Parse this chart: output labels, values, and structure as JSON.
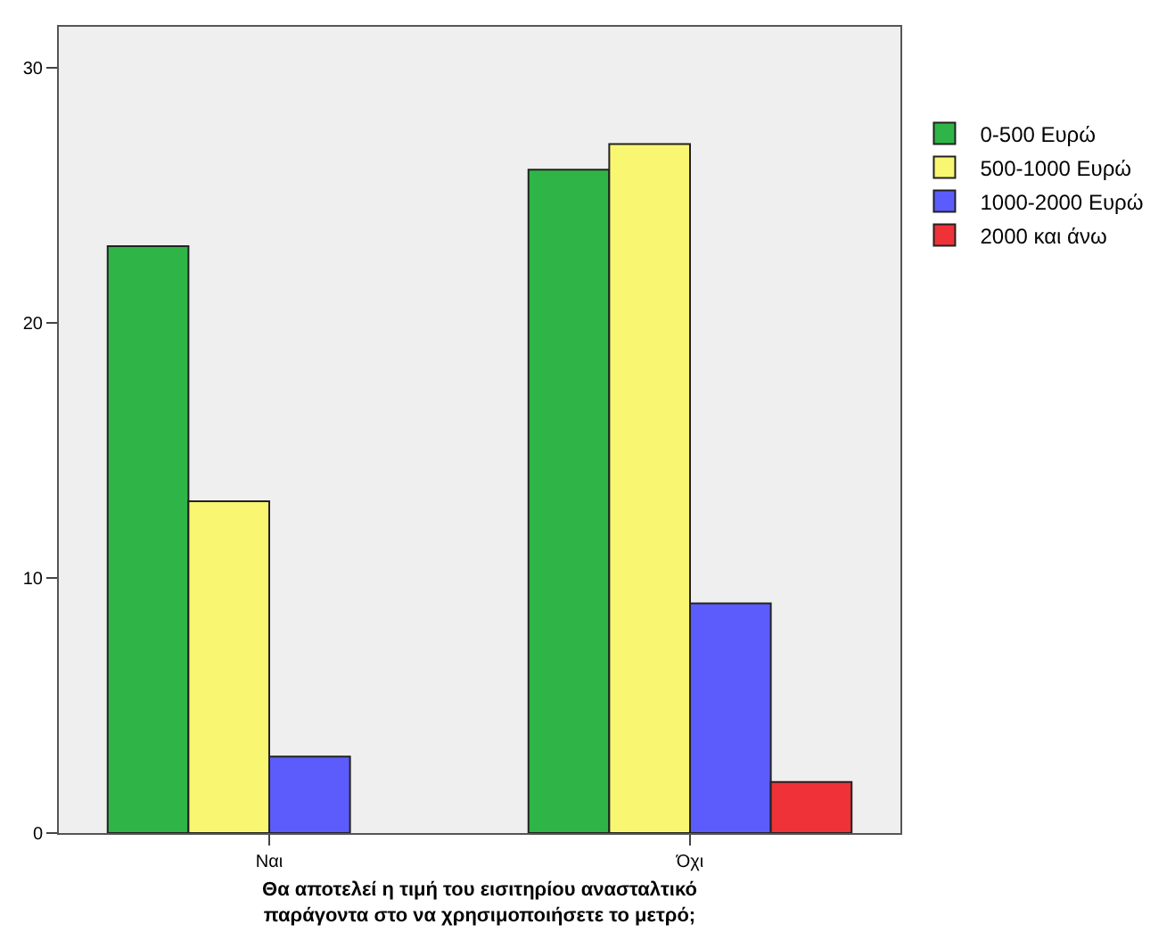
{
  "chart_data": {
    "type": "bar",
    "xlabel": "Θα αποτελεί η τιμή του εισιτηρίου ανασταλτικό\nπαράγοντα στο να χρησιμοποιήσετε το μετρό;",
    "categories": [
      "Ναι",
      "Όχι"
    ],
    "series": [
      {
        "name": "0-500 Ευρώ",
        "color": "#2fb547",
        "values": [
          23,
          26
        ]
      },
      {
        "name": "500-1000 Ευρώ",
        "color": "#f9f672",
        "values": [
          13,
          27
        ]
      },
      {
        "name": "1000-2000 Ευρώ",
        "color": "#5c5cfd",
        "values": [
          3,
          9
        ]
      },
      {
        "name": "2000 και άνω",
        "color": "#ef3138",
        "values": [
          null,
          2
        ]
      }
    ],
    "ylim": [
      0,
      31.6
    ],
    "yticks": [
      0,
      10,
      20,
      30
    ],
    "grid": false,
    "legend": "top right"
  }
}
